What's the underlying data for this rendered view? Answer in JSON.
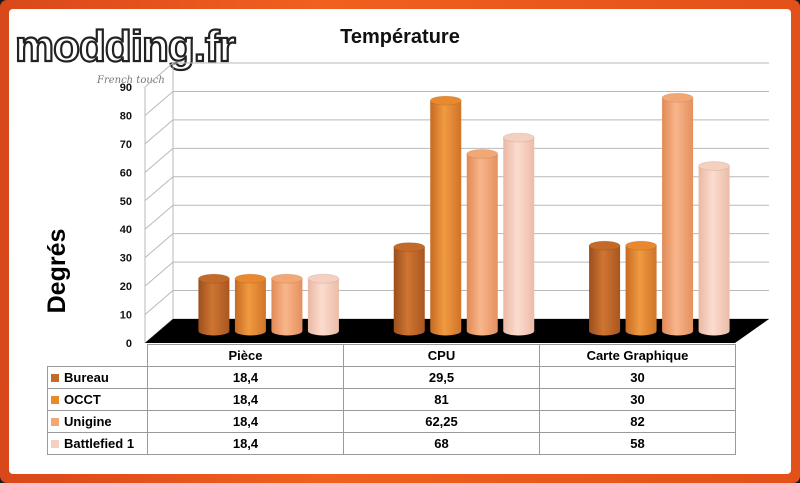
{
  "watermark": {
    "logo_text": "modding.fr",
    "tagline": "French touch"
  },
  "colors": {
    "Bureau": "#c46a28",
    "OCCT": "#e8892f",
    "Unigine": "#f3a775",
    "Battlefied 1": "#f5cfbf",
    "floor": "#000000",
    "frame": "#ee5a1c"
  },
  "chart_data": {
    "type": "bar",
    "title": "Température",
    "xlabel": "",
    "ylabel": "Degrés",
    "ylim": [
      0,
      90
    ],
    "yticks": [
      "0",
      "10",
      "20",
      "30",
      "40",
      "50",
      "60",
      "70",
      "80",
      "90"
    ],
    "grid": true,
    "legend": "data-table",
    "categories": [
      "Pièce",
      "CPU",
      "Carte Graphique"
    ],
    "series": [
      {
        "name": "Bureau",
        "values": [
          18.4,
          29.5,
          30
        ],
        "labels": [
          "18,4",
          "29,5",
          "30"
        ]
      },
      {
        "name": "OCCT",
        "values": [
          18.4,
          81,
          30
        ],
        "labels": [
          "18,4",
          "81",
          "30"
        ]
      },
      {
        "name": "Unigine",
        "values": [
          18.4,
          62.25,
          82
        ],
        "labels": [
          "18,4",
          "62,25",
          "82"
        ]
      },
      {
        "name": "Battlefied 1",
        "values": [
          18.4,
          68,
          58
        ],
        "labels": [
          "18,4",
          "68",
          "58"
        ]
      }
    ]
  }
}
